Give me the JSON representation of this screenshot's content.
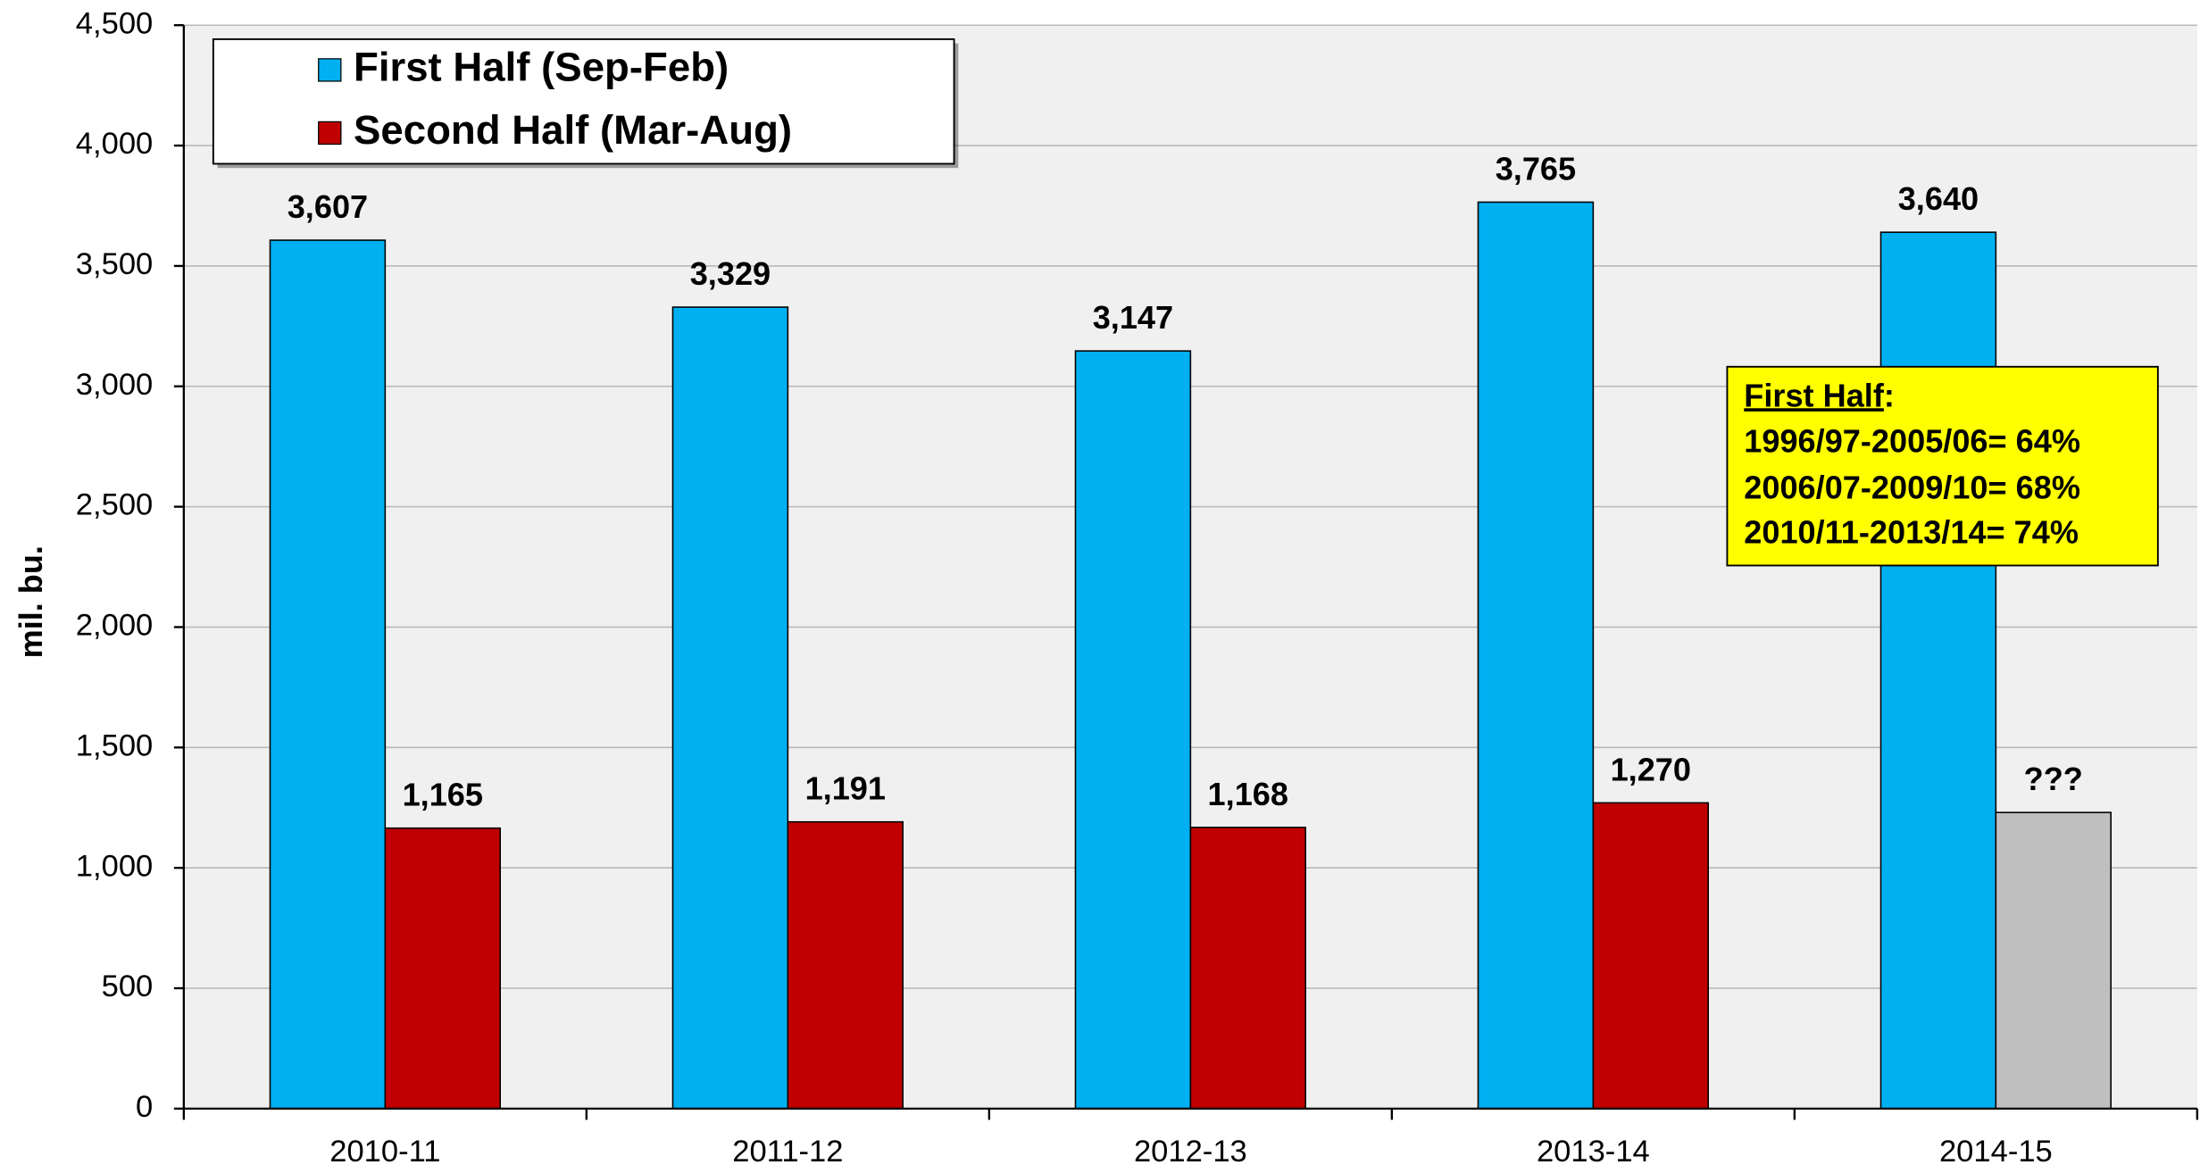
{
  "chart_data": {
    "type": "bar",
    "y_label": "mil. bu.",
    "categories": [
      "2010-11",
      "2011-12",
      "2012-13",
      "2013-14",
      "2014-15"
    ],
    "series": [
      {
        "name": "First Half (Sep-Feb)",
        "color": "#00b0f0",
        "values": [
          3607,
          3329,
          3147,
          3765,
          3640
        ],
        "value_labels": [
          "3,607",
          "3,329",
          "3,147",
          "3,765",
          "3,640"
        ]
      },
      {
        "name": "Second Half (Mar-Aug)",
        "color": "#c00000",
        "colors": [
          "#c00000",
          "#c00000",
          "#c00000",
          "#c00000",
          "#bfbfbf"
        ],
        "values": [
          1165,
          1191,
          1168,
          1270,
          1230
        ],
        "value_labels": [
          "1,165",
          "1,191",
          "1,168",
          "1,270",
          "???"
        ]
      }
    ],
    "ylim": [
      0,
      4500
    ],
    "yticks": [
      0,
      500,
      {
        "value": 1000,
        "label": "1,000"
      },
      {
        "value": 1500,
        "label": "1,500"
      },
      {
        "value": 2000,
        "label": "2,000"
      },
      {
        "value": 2500,
        "label": "2,500"
      },
      {
        "value": 3000,
        "label": "3,000"
      },
      {
        "value": 3500,
        "label": "3,500"
      },
      {
        "value": 4000,
        "label": "4,000"
      },
      {
        "value": 4500,
        "label": "4,500"
      }
    ],
    "grid": true,
    "legend": "upper left",
    "annotation": {
      "title": "First Half",
      "title_punct": ":",
      "lines": [
        "1996/97-2005/06= 64%",
        "2006/07-2009/10= 68%",
        "2010/11-2013/14= 74%"
      ]
    }
  }
}
